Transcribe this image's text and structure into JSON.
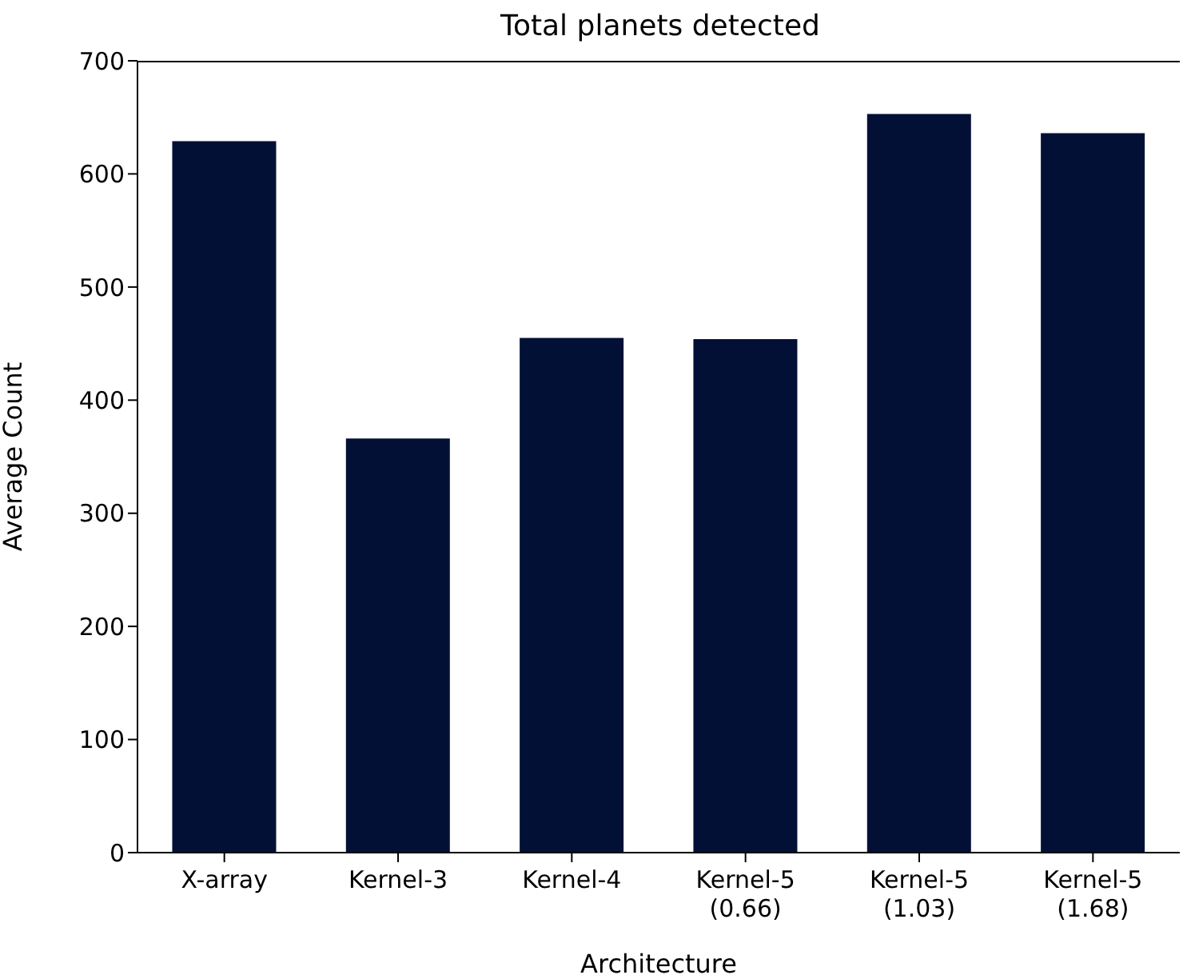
{
  "chart_data": {
    "type": "bar",
    "title": "Total planets detected",
    "xlabel": "Architecture",
    "ylabel": "Average Count",
    "categories": [
      "X-array",
      "Kernel-3",
      "Kernel-4",
      "Kernel-5\n(0.66)",
      "Kernel-5\n(1.03)",
      "Kernel-5\n(1.68)"
    ],
    "values": [
      629,
      366,
      455,
      454,
      653,
      636
    ],
    "color": "#031036",
    "ylim": [
      0,
      700
    ],
    "yticks": [
      0,
      100,
      200,
      300,
      400,
      500,
      600,
      700
    ],
    "grid": false
  }
}
